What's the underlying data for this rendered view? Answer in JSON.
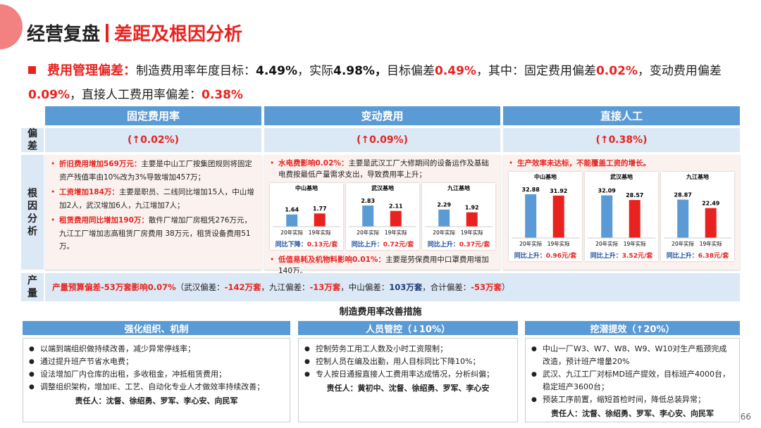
{
  "header": {
    "title_left": "经营复盘",
    "title_right": "差距及根因分析"
  },
  "summary": {
    "label": "费用管理偏差：",
    "runs": [
      {
        "text": "制造费用率年度目标：",
        "style": "plain"
      },
      {
        "text": "4.49%",
        "style": "bold"
      },
      {
        "text": "，实际",
        "style": "plain"
      },
      {
        "text": "4.98%，",
        "style": "bold"
      },
      {
        "text": "目标偏差",
        "style": "plain"
      },
      {
        "text": "0.49%",
        "style": "red"
      },
      {
        "text": "，其中：固定费用偏差",
        "style": "plain"
      },
      {
        "text": "0.02%",
        "style": "red"
      },
      {
        "text": "，变动费用偏差",
        "style": "plain"
      },
      {
        "text": "0.09%",
        "style": "red"
      },
      {
        "text": "，直接人工费用率偏差：",
        "style": "plain"
      },
      {
        "text": "0.38%",
        "style": "red"
      }
    ]
  },
  "table": {
    "columns": [
      "固定费用率",
      "变动费用",
      "直接人工"
    ],
    "row_labels": [
      "偏差",
      "根因分析",
      "产量"
    ],
    "deviation": [
      "(↑0.02%)",
      "(↑0.09%)",
      "(↑0.38%)"
    ],
    "mini_chart_series": [
      {
        "name": "20年实际",
        "color": "#5b9bd5"
      },
      {
        "name": "19年实际",
        "color": "#e8231f"
      }
    ],
    "root_causes": [
      {
        "blocks": [
          {
            "kind": "bullet",
            "runs": [
              {
                "text": "折旧费用增加569万元：",
                "style": "red"
              },
              {
                "text": "主要是中山工厂按集团规则将固定资产残值率由10%改为3%导致增加457万；",
                "style": "plain"
              }
            ]
          },
          {
            "kind": "bullet",
            "runs": [
              {
                "text": "工资增加184万：",
                "style": "red"
              },
              {
                "text": "主要是职员、二线同比增加15人，中山增加2人，武汉增加6人，九江增加7人；",
                "style": "plain"
              }
            ]
          },
          {
            "kind": "bullet",
            "runs": [
              {
                "text": "租赁费用同比增加190万：",
                "style": "red"
              },
              {
                "text": "散件厂增加厂房租凭276万元，九江工厂增加志高租赁厂房费用 38万元，租赁设备费用51万。",
                "style": "plain"
              }
            ]
          }
        ]
      },
      {
        "blocks": [
          {
            "kind": "bullet",
            "runs": [
              {
                "text": "水电费影响0.02%：",
                "style": "red"
              },
              {
                "text": "主要是武汉工厂大修期间的设备运作及基础电费按最低产量需求支出，导致费用率上升；",
                "style": "plain"
              }
            ]
          },
          {
            "kind": "charts",
            "charts": [
              {
                "name": "中山基地",
                "values": [
                  1.64,
                  1.77
                ],
                "caption_label": "同比下降：",
                "caption_value": "0.13元/套"
              },
              {
                "name": "武汉基地",
                "values": [
                  2.83,
                  2.11
                ],
                "caption_label": "同比上升：",
                "caption_value": "0.72元/套"
              },
              {
                "name": "九江基地",
                "values": [
                  2.29,
                  1.92
                ],
                "caption_label": "同比上升：",
                "caption_value": "0.37元/套"
              }
            ]
          },
          {
            "kind": "bullet",
            "runs": [
              {
                "text": "低值易耗及机物料影响0.01%：",
                "style": "red"
              },
              {
                "text": "主要是劳保费用中口罩费用增加140万。",
                "style": "plain"
              }
            ]
          }
        ]
      },
      {
        "blocks": [
          {
            "kind": "bullet",
            "runs": [
              {
                "text": "生产效率未达标，不能覆盖工资的增长。",
                "style": "red"
              }
            ]
          },
          {
            "kind": "charts",
            "charts": [
              {
                "name": "中山基地",
                "values": [
                  32.88,
                  31.92
                ],
                "caption_label": "同比上升：",
                "caption_value": "0.96元/套"
              },
              {
                "name": "武汉基地",
                "values": [
                  32.09,
                  28.57
                ],
                "caption_label": "同比上升：",
                "caption_value": "3.52元/套"
              },
              {
                "name": "九江基地",
                "values": [
                  28.87,
                  22.49
                ],
                "caption_label": "同比上升：",
                "caption_value": "6.38元/套"
              }
            ]
          }
        ]
      }
    ],
    "output_runs": [
      {
        "text": "产量预算偏差-53万套影响0.07%",
        "style": "red"
      },
      {
        "text": "（武汉偏差：",
        "style": "plain"
      },
      {
        "text": "-142万套",
        "style": "red"
      },
      {
        "text": "，九江偏差：",
        "style": "plain"
      },
      {
        "text": "-13万套",
        "style": "red"
      },
      {
        "text": "，中山偏差：",
        "style": "plain"
      },
      {
        "text": "103万套",
        "style": "blue"
      },
      {
        "text": "，合计偏差：",
        "style": "plain"
      },
      {
        "text": "-53万套",
        "style": "red"
      },
      {
        "text": "）",
        "style": "plain"
      }
    ]
  },
  "measures": {
    "title": "制造费用率改善措施",
    "columns": [
      {
        "header": "强化组织、机制",
        "items": [
          "以端到端组织做持续改善，减少异常停线率；",
          "通过提升班产节省水电费；",
          "设法增加厂内仓库的出租，多收租金，冲抵租赁费用；",
          "调整组织架构，增加IE、工艺、自动化专业人才做效率持续改善；"
        ],
        "owner": "责任人：沈督、徐绍勇、罗军、李心安、向民军"
      },
      {
        "header": "人员管控（↓10%）",
        "items": [
          "控制劳务工用工人数及小时工资限制；",
          "控制人员在编及出勤，用人目标同比下降10%；",
          "专人按日通报直接人工费用率达成情况，分析纠偏；"
        ],
        "owner": "责任人：黄初中、沈督、徐绍勇、罗军、李心安"
      },
      {
        "header": "挖潜提效（↑20%）",
        "items": [
          "中山一厂W3、W7、W8、W9、W10对生产瓶颈完成改造，预计班产增量20%",
          "武汉、九江工厂对标MD班产提效，目标班产4000台，稳定班产3600台；",
          "预装工序前置，缩短首检时间，降低总装异常；"
        ],
        "owner": "责任人：沈督、徐绍勇、罗军、李心安、向民军"
      }
    ]
  },
  "page_number": "66"
}
